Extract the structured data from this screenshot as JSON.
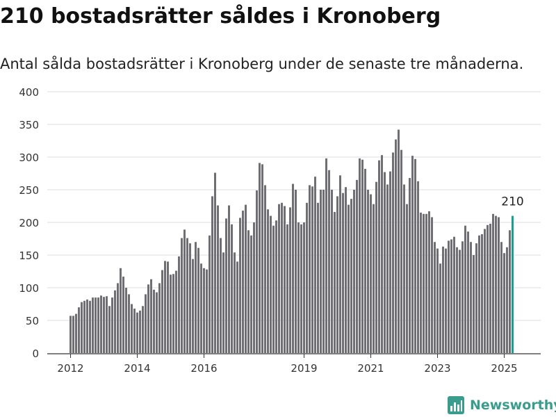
{
  "header": {
    "title": "210 bostadsrätter såldes i Kronoberg",
    "subtitle": "Antal sålda bostadsrätter i Kronoberg under de senaste tre månaderna."
  },
  "brand": {
    "name": "Newsworthy",
    "icon": "bar-chart-logo-icon",
    "color": "#3a9c8d"
  },
  "colors": {
    "bars": "#6f6e73",
    "highlight": "#1a9e8f",
    "grid": "#dddddd",
    "axis": "#333333"
  },
  "chart_data": {
    "type": "bar",
    "title": "210 bostadsrätter såldes i Kronoberg",
    "subtitle": "Antal sålda bostadsrätter i Kronoberg under de senaste tre månaderna.",
    "xlabel": "",
    "ylabel": "",
    "ylim": [
      0,
      400
    ],
    "yticks": [
      0,
      50,
      100,
      150,
      200,
      250,
      300,
      350,
      400
    ],
    "xticks": [
      "2012",
      "2014",
      "2016",
      "2019",
      "2021",
      "2023",
      "2025"
    ],
    "grid": true,
    "legend": "none",
    "period": "rolling three-month totals, monthly, Jan 2012 – Apr 2025",
    "x": [
      "2012-01",
      "2012-02",
      "2012-03",
      "2012-04",
      "2012-05",
      "2012-06",
      "2012-07",
      "2012-08",
      "2012-09",
      "2012-10",
      "2012-11",
      "2012-12",
      "2013-01",
      "2013-02",
      "2013-03",
      "2013-04",
      "2013-05",
      "2013-06",
      "2013-07",
      "2013-08",
      "2013-09",
      "2013-10",
      "2013-11",
      "2013-12",
      "2014-01",
      "2014-02",
      "2014-03",
      "2014-04",
      "2014-05",
      "2014-06",
      "2014-07",
      "2014-08",
      "2014-09",
      "2014-10",
      "2014-11",
      "2014-12",
      "2015-01",
      "2015-02",
      "2015-03",
      "2015-04",
      "2015-05",
      "2015-06",
      "2015-07",
      "2015-08",
      "2015-09",
      "2015-10",
      "2015-11",
      "2015-12",
      "2016-01",
      "2016-02",
      "2016-03",
      "2016-04",
      "2016-05",
      "2016-06",
      "2016-07",
      "2016-08",
      "2016-09",
      "2016-10",
      "2016-11",
      "2016-12",
      "2017-01",
      "2017-02",
      "2017-03",
      "2017-04",
      "2017-05",
      "2017-06",
      "2017-07",
      "2017-08",
      "2017-09",
      "2017-10",
      "2017-11",
      "2017-12",
      "2018-01",
      "2018-02",
      "2018-03",
      "2018-04",
      "2018-05",
      "2018-06",
      "2018-07",
      "2018-08",
      "2018-09",
      "2018-10",
      "2018-11",
      "2018-12",
      "2019-01",
      "2019-02",
      "2019-03",
      "2019-04",
      "2019-05",
      "2019-06",
      "2019-07",
      "2019-08",
      "2019-09",
      "2019-10",
      "2019-11",
      "2019-12",
      "2020-01",
      "2020-02",
      "2020-03",
      "2020-04",
      "2020-05",
      "2020-06",
      "2020-07",
      "2020-08",
      "2020-09",
      "2020-10",
      "2020-11",
      "2020-12",
      "2021-01",
      "2021-02",
      "2021-03",
      "2021-04",
      "2021-05",
      "2021-06",
      "2021-07",
      "2021-08",
      "2021-09",
      "2021-10",
      "2021-11",
      "2021-12",
      "2022-01",
      "2022-02",
      "2022-03",
      "2022-04",
      "2022-05",
      "2022-06",
      "2022-07",
      "2022-08",
      "2022-09",
      "2022-10",
      "2022-11",
      "2022-12",
      "2023-01",
      "2023-02",
      "2023-03",
      "2023-04",
      "2023-05",
      "2023-06",
      "2023-07",
      "2023-08",
      "2023-09",
      "2023-10",
      "2023-11",
      "2023-12",
      "2024-01",
      "2024-02",
      "2024-03",
      "2024-04",
      "2024-05",
      "2024-06",
      "2024-07",
      "2024-08",
      "2024-09",
      "2024-10",
      "2024-11",
      "2024-12",
      "2025-01",
      "2025-02",
      "2025-03",
      "2025-04"
    ],
    "values": [
      57,
      57,
      60,
      70,
      78,
      80,
      82,
      80,
      85,
      85,
      85,
      88,
      86,
      87,
      72,
      85,
      96,
      107,
      130,
      117,
      100,
      90,
      75,
      68,
      62,
      65,
      72,
      90,
      105,
      113,
      97,
      93,
      107,
      127,
      141,
      140,
      120,
      121,
      126,
      148,
      176,
      189,
      176,
      168,
      144,
      170,
      161,
      137,
      130,
      128,
      180,
      240,
      276,
      226,
      176,
      154,
      206,
      226,
      197,
      154,
      140,
      207,
      218,
      227,
      188,
      180,
      200,
      249,
      291,
      289,
      257,
      220,
      210,
      195,
      203,
      228,
      230,
      225,
      197,
      223,
      259,
      250,
      200,
      197,
      200,
      230,
      257,
      255,
      270,
      230,
      250,
      250,
      298,
      280,
      250,
      216,
      240,
      272,
      245,
      254,
      227,
      236,
      250,
      265,
      298,
      296,
      282,
      250,
      243,
      228,
      262,
      295,
      303,
      277,
      258,
      278,
      307,
      327,
      342,
      311,
      258,
      228,
      268,
      302,
      297,
      263,
      215,
      213,
      213,
      217,
      208,
      170,
      160,
      137,
      163,
      160,
      172,
      174,
      178,
      162,
      158,
      171,
      195,
      186,
      170,
      150,
      168,
      180,
      182,
      190,
      196,
      198,
      213,
      210,
      208,
      170,
      153,
      162,
      188,
      210
    ],
    "highlight_index": 159,
    "annotations": [
      {
        "x": "2025-04",
        "y": 210,
        "text": "210"
      }
    ]
  }
}
